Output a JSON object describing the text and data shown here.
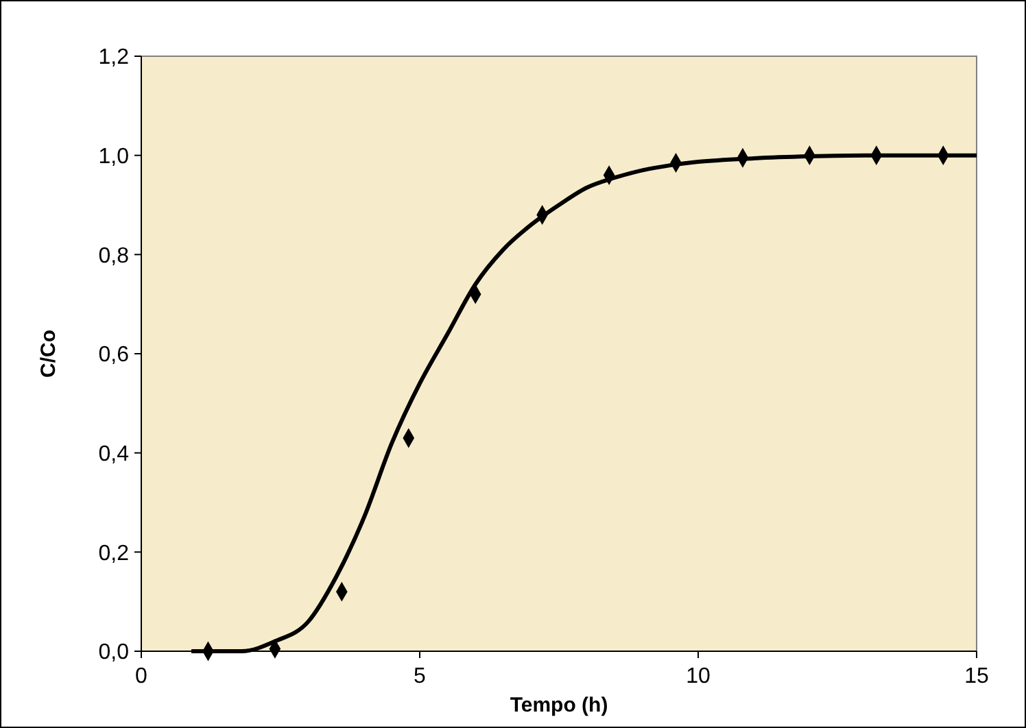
{
  "chart_data": {
    "type": "line",
    "xlabel": "Tempo (h)",
    "ylabel": "C/Co",
    "xlim": [
      0,
      15
    ],
    "xticks": [
      0,
      5,
      10,
      15
    ],
    "ylim": [
      0,
      1.2
    ],
    "yticks": [
      {
        "value": 0,
        "label": "0,0"
      },
      {
        "value": 0.2,
        "label": "0,2"
      },
      {
        "value": 0.4,
        "label": "0,4"
      },
      {
        "value": 0.6,
        "label": "0,6"
      },
      {
        "value": 0.8,
        "label": "0,8"
      },
      {
        "value": 1,
        "label": "1,0"
      },
      {
        "value": 1.2,
        "label": "1,2"
      }
    ],
    "grid": false,
    "series": [
      {
        "color": "#000000",
        "line_style": "solid",
        "marker": "none",
        "x": [
          0.9,
          1.8,
          2.4,
          3,
          3.5,
          4,
          4.5,
          5,
          5.5,
          6,
          6.5,
          7,
          7.5,
          8,
          8.5,
          9,
          9.5,
          10,
          11,
          12,
          13,
          15
        ],
        "values": [
          0,
          0,
          0.02,
          0.06,
          0.15,
          0.27,
          0.42,
          0.54,
          0.64,
          0.74,
          0.81,
          0.86,
          0.9,
          0.935,
          0.955,
          0.97,
          0.98,
          0.987,
          0.994,
          0.998,
          1,
          1
        ]
      },
      {
        "type": "scatter",
        "color": "#000000",
        "marker": "diamond",
        "x": [
          1.2,
          2.4,
          3.6,
          4.8,
          6,
          7.2,
          8.4,
          9.6,
          10.8,
          12,
          13.2,
          14.4
        ],
        "values": [
          0,
          0.005,
          0.12,
          0.43,
          0.72,
          0.88,
          0.96,
          0.985,
          0.995,
          1,
          1,
          1
        ]
      }
    ]
  }
}
